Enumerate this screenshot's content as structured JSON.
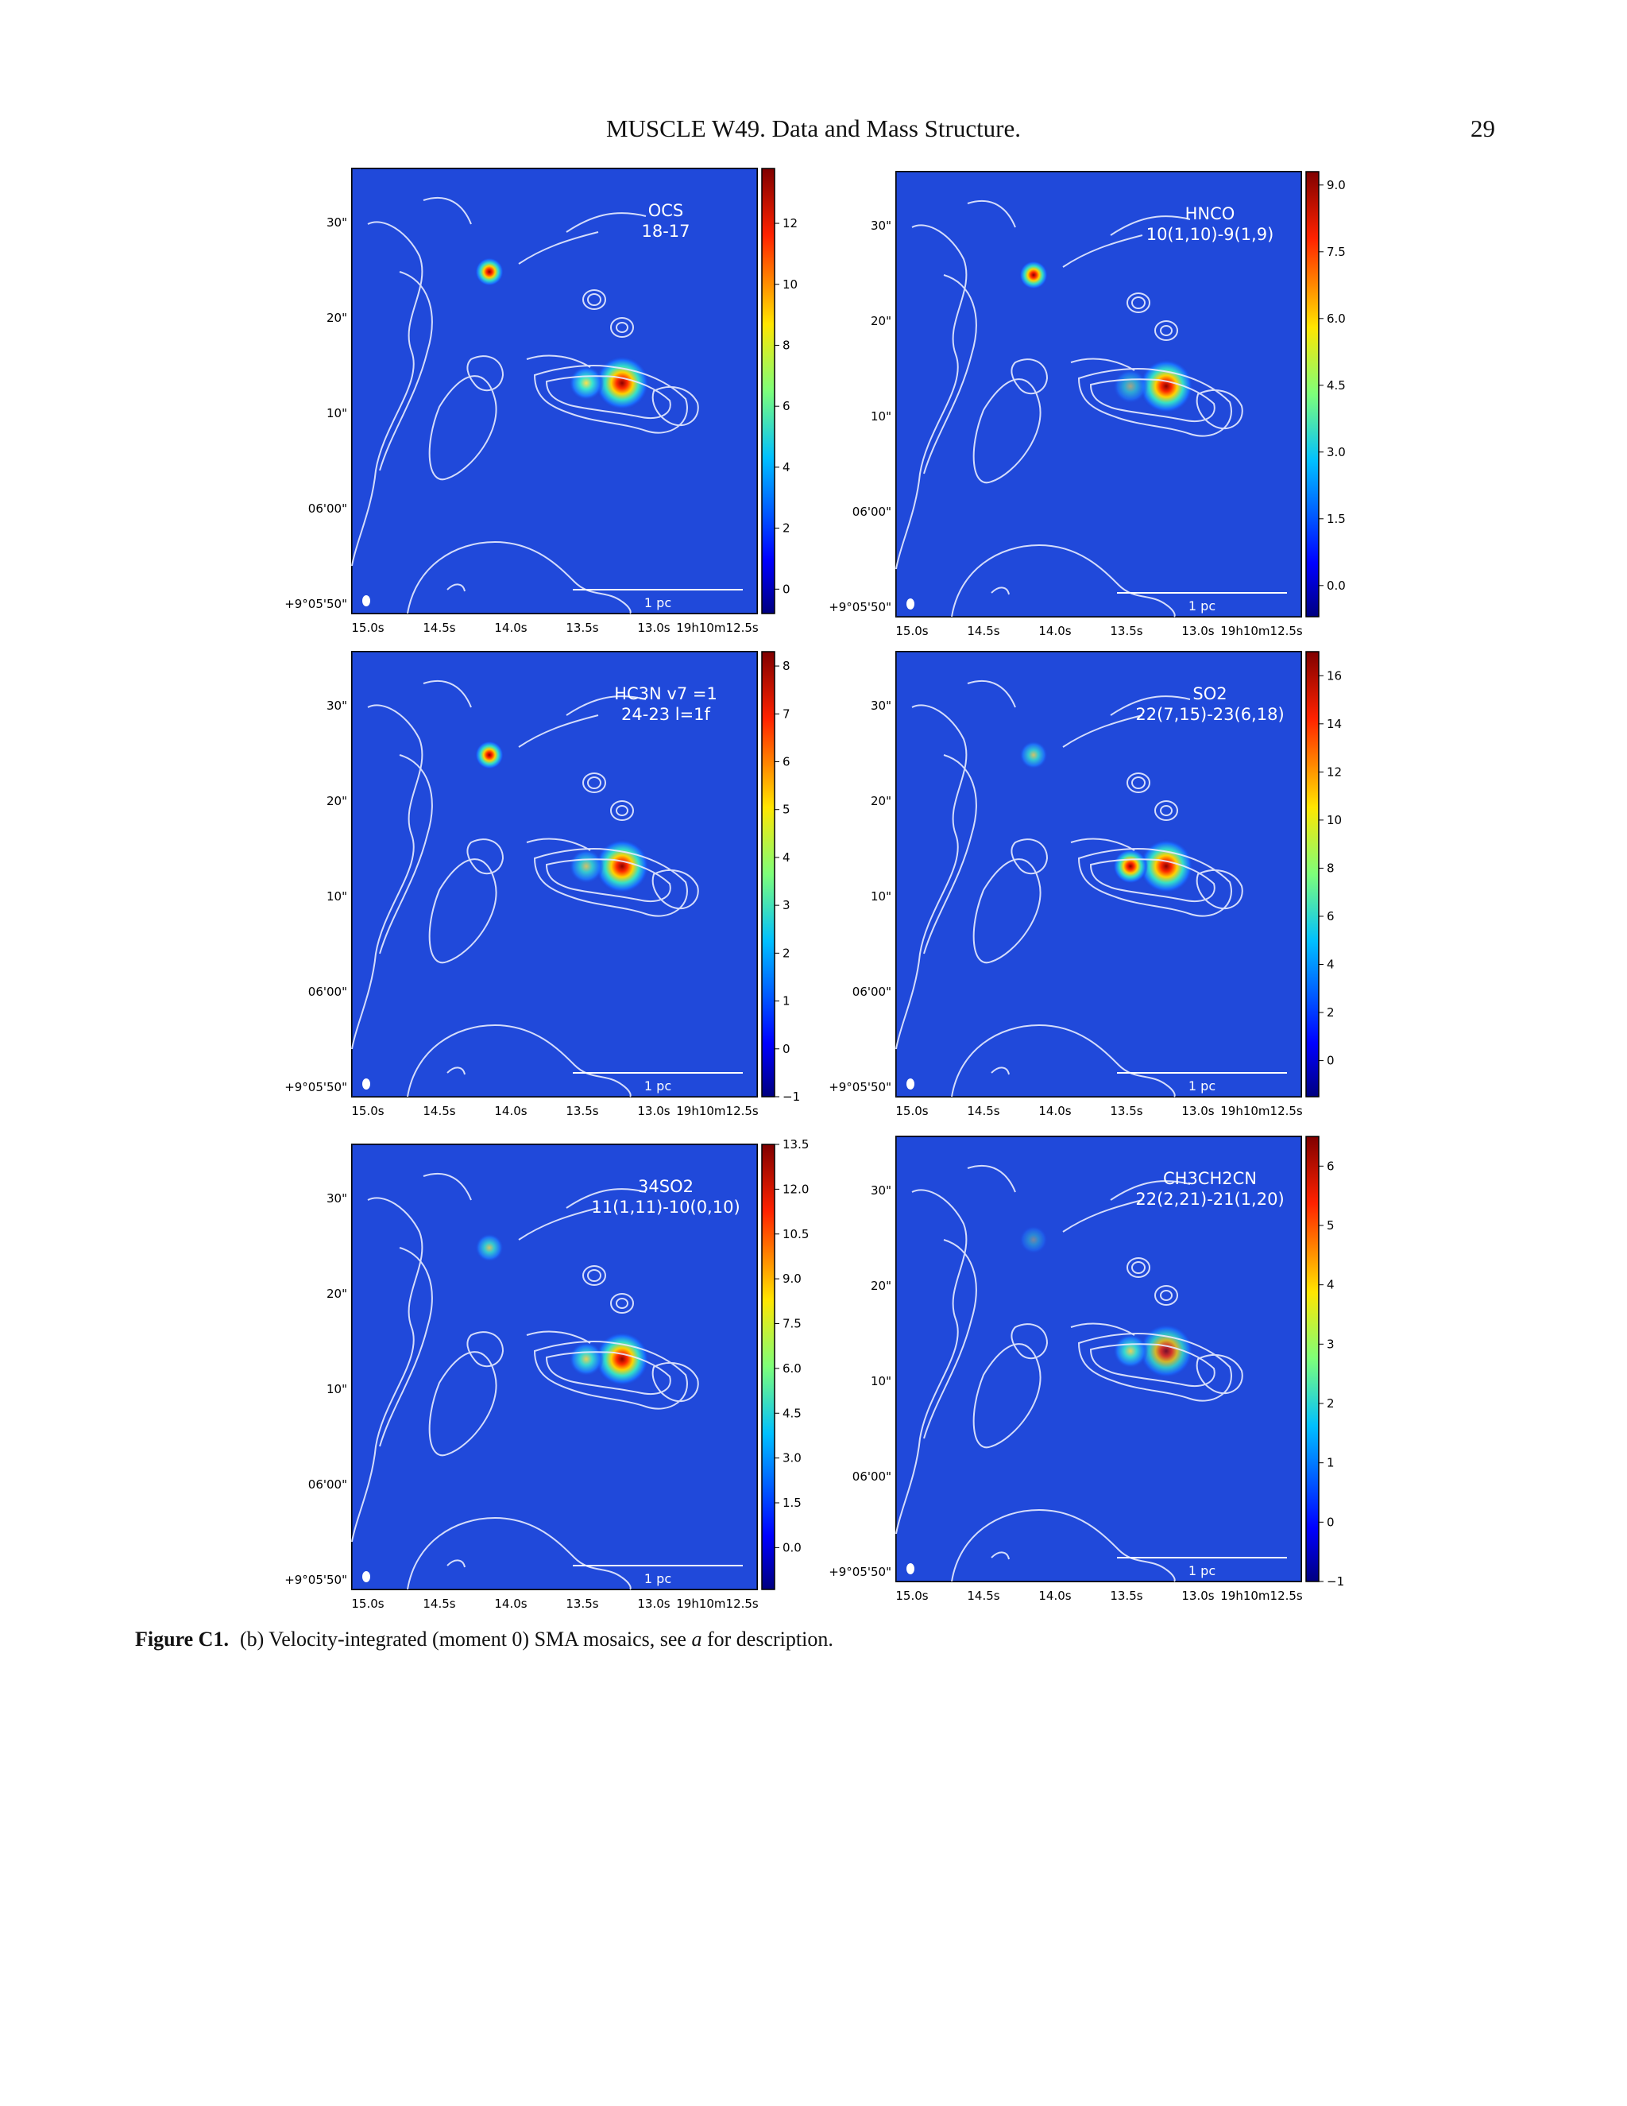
{
  "header": {
    "title": "MUSCLE W49. Data and Mass Structure.",
    "page": "29"
  },
  "axes": {
    "x_ticks": [
      "15.0s",
      "14.5s",
      "14.0s",
      "13.5s",
      "13.0s",
      "19h10m12.5s"
    ],
    "y_ticks": [
      "30\"",
      "20\"",
      "10\"",
      "06'00\"",
      "+9°05'50\""
    ],
    "scalebar": "1 pc"
  },
  "panels": [
    {
      "id": "ocs",
      "label": [
        "OCS",
        "18-17"
      ],
      "colorbar_ticks": [
        "12",
        "10",
        "8",
        "6",
        "4",
        "2",
        "0"
      ],
      "colorbar_range": [
        -0.8,
        13.8
      ],
      "colorbar_values": [
        12,
        10,
        8,
        6,
        4,
        2,
        0
      ]
    },
    {
      "id": "hnco",
      "label": [
        "HNCO",
        "10(1,10)-9(1,9)"
      ],
      "colorbar_ticks": [
        "9.0",
        "7.5",
        "6.0",
        "4.5",
        "3.0",
        "1.5",
        "0.0"
      ],
      "colorbar_range": [
        -0.7,
        9.3
      ],
      "colorbar_values": [
        9.0,
        7.5,
        6.0,
        4.5,
        3.0,
        1.5,
        0.0
      ]
    },
    {
      "id": "hc3n",
      "label": [
        "HC3N v7 =1",
        "24-23 l=1f"
      ],
      "colorbar_ticks": [
        "8",
        "7",
        "6",
        "5",
        "4",
        "3",
        "2",
        "1",
        "0",
        "−1"
      ],
      "colorbar_range": [
        -1.0,
        8.3
      ],
      "colorbar_values": [
        8,
        7,
        6,
        5,
        4,
        3,
        2,
        1,
        0,
        -1
      ]
    },
    {
      "id": "so2",
      "label": [
        "SO2",
        "22(7,15)-23(6,18)"
      ],
      "colorbar_ticks": [
        "16",
        "14",
        "12",
        "10",
        "8",
        "6",
        "4",
        "2",
        "0"
      ],
      "colorbar_range": [
        -1.5,
        17.0
      ],
      "colorbar_values": [
        16,
        14,
        12,
        10,
        8,
        6,
        4,
        2,
        0
      ]
    },
    {
      "id": "34so2",
      "label": [
        "34SO2",
        "11(1,11)-10(0,10)"
      ],
      "colorbar_ticks": [
        "13.5",
        "12.0",
        "10.5",
        "9.0",
        "7.5",
        "6.0",
        "4.5",
        "3.0",
        "1.5",
        "0.0"
      ],
      "colorbar_range": [
        -1.4,
        13.5
      ],
      "colorbar_values": [
        13.5,
        12.0,
        10.5,
        9.0,
        7.5,
        6.0,
        4.5,
        3.0,
        1.5,
        0.0
      ]
    },
    {
      "id": "ch3ch2cn",
      "label": [
        "CH3CH2CN",
        "22(2,21)-21(1,20)"
      ],
      "colorbar_ticks": [
        "6",
        "5",
        "4",
        "3",
        "2",
        "1",
        "0",
        "−1"
      ],
      "colorbar_range": [
        -1.0,
        6.5
      ],
      "colorbar_values": [
        6,
        5,
        4,
        3,
        2,
        1,
        0,
        -1
      ]
    }
  ],
  "caption": {
    "label": "Figure C1.",
    "text_a": "(b) Velocity-integrated (moment 0) SMA mosaics, see ",
    "text_em": "a",
    "text_b": " for description."
  }
}
